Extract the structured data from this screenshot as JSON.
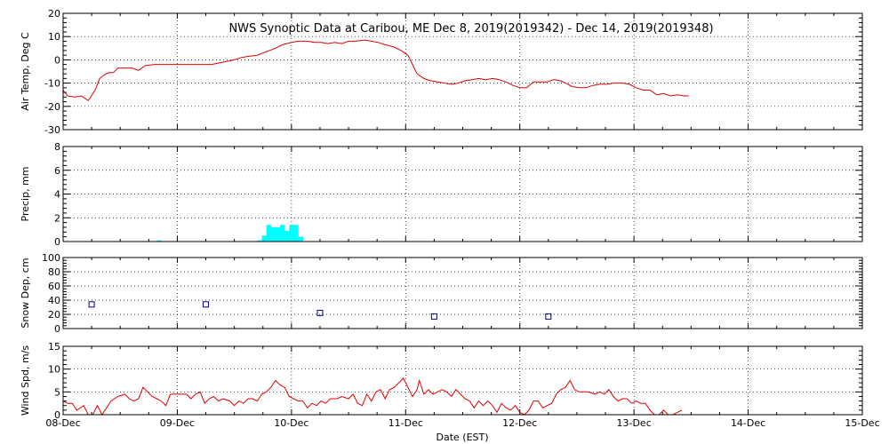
{
  "chart_data": {
    "type": "line",
    "title": "NWS Synoptic Data at Caribou, ME   Dec  8, 2019(2019342) - Dec 14, 2019(2019348)",
    "xlabel": "Date (EST)",
    "x_ticks": [
      "08-Dec",
      "09-Dec",
      "10-Dec",
      "11-Dec",
      "12-Dec",
      "13-Dec",
      "14-Dec",
      "15-Dec"
    ],
    "x_range_days": [
      0,
      7
    ],
    "grid": true,
    "panels": [
      {
        "id": "air-temp",
        "ylabel": "Air Temp, Deg C",
        "ylim": [
          -30,
          20
        ],
        "yticks": [
          "-30",
          "-20",
          "-10",
          "0",
          "10",
          "20"
        ],
        "series": [
          {
            "type": "line",
            "color": "#e00000",
            "points": [
              [
                0.0,
                -13
              ],
              [
                0.04,
                -15.5
              ],
              [
                0.1,
                -16
              ],
              [
                0.16,
                -15.5
              ],
              [
                0.22,
                -17.5
              ],
              [
                0.28,
                -13
              ],
              [
                0.32,
                -8
              ],
              [
                0.36,
                -6.5
              ],
              [
                0.4,
                -5.5
              ],
              [
                0.44,
                -5.5
              ],
              [
                0.48,
                -3.5
              ],
              [
                0.54,
                -3.5
              ],
              [
                0.6,
                -3.5
              ],
              [
                0.66,
                -4.5
              ],
              [
                0.72,
                -2.5
              ],
              [
                0.8,
                -2
              ],
              [
                0.9,
                -2
              ],
              [
                1.0,
                -2
              ],
              [
                1.1,
                -2
              ],
              [
                1.2,
                -2
              ],
              [
                1.3,
                -2
              ],
              [
                1.4,
                -1
              ],
              [
                1.5,
                0
              ],
              [
                1.56,
                1
              ],
              [
                1.62,
                1.5
              ],
              [
                1.7,
                2
              ],
              [
                1.78,
                3.5
              ],
              [
                1.86,
                5
              ],
              [
                1.92,
                6.5
              ],
              [
                2.0,
                7.5
              ],
              [
                2.06,
                8
              ],
              [
                2.14,
                8
              ],
              [
                2.2,
                7.5
              ],
              [
                2.26,
                7.5
              ],
              [
                2.32,
                7
              ],
              [
                2.38,
                7.5
              ],
              [
                2.44,
                7
              ],
              [
                2.5,
                8
              ],
              [
                2.56,
                8
              ],
              [
                2.64,
                8.5
              ],
              [
                2.7,
                8
              ],
              [
                2.76,
                7.5
              ],
              [
                2.82,
                6.5
              ],
              [
                2.9,
                5.5
              ],
              [
                2.96,
                4
              ],
              [
                3.02,
                2
              ],
              [
                3.06,
                -2
              ],
              [
                3.1,
                -6
              ],
              [
                3.16,
                -8
              ],
              [
                3.22,
                -9
              ],
              [
                3.28,
                -9.5
              ],
              [
                3.34,
                -10
              ],
              [
                3.4,
                -10.5
              ],
              [
                3.46,
                -10
              ],
              [
                3.52,
                -9
              ],
              [
                3.58,
                -8.5
              ],
              [
                3.64,
                -8
              ],
              [
                3.7,
                -8.5
              ],
              [
                3.76,
                -8
              ],
              [
                3.82,
                -8.5
              ],
              [
                3.88,
                -9.5
              ],
              [
                3.94,
                -11
              ],
              [
                4.0,
                -12
              ],
              [
                4.06,
                -12
              ],
              [
                4.12,
                -9.5
              ],
              [
                4.18,
                -9.5
              ],
              [
                4.24,
                -9.5
              ],
              [
                4.3,
                -8.5
              ],
              [
                4.36,
                -9
              ],
              [
                4.4,
                -10
              ],
              [
                4.46,
                -11.5
              ],
              [
                4.52,
                -12
              ],
              [
                4.58,
                -12
              ],
              [
                4.64,
                -11
              ],
              [
                4.7,
                -10.5
              ],
              [
                4.76,
                -10.5
              ],
              [
                4.82,
                -10
              ],
              [
                4.9,
                -10
              ],
              [
                4.96,
                -10.5
              ],
              [
                5.02,
                -12
              ],
              [
                5.08,
                -13
              ],
              [
                5.14,
                -13
              ],
              [
                5.2,
                -15
              ],
              [
                5.26,
                -14.5
              ],
              [
                5.32,
                -15.5
              ],
              [
                5.38,
                -15
              ],
              [
                5.44,
                -15.5
              ],
              [
                5.48,
                -15.5
              ]
            ]
          }
        ]
      },
      {
        "id": "precip",
        "ylabel": "Precip, mm",
        "ylim": [
          0,
          8
        ],
        "yticks": [
          "0",
          "2",
          "4",
          "6",
          "8"
        ],
        "series": [
          {
            "type": "step-bar",
            "color": "#00ffff",
            "bars": [
              [
                0.82,
                0.1
              ],
              [
                1.7,
                0.1
              ],
              [
                1.74,
                0.5
              ],
              [
                1.78,
                1.4
              ],
              [
                1.82,
                1.2
              ],
              [
                1.86,
                1.2
              ],
              [
                1.9,
                1.4
              ],
              [
                1.94,
                0.9
              ],
              [
                1.98,
                1.4
              ],
              [
                2.02,
                1.4
              ],
              [
                2.06,
                0.4
              ]
            ],
            "bar_width_days": 0.042
          }
        ]
      },
      {
        "id": "snow-depth",
        "ylabel": "Snow Dep, cm",
        "ylim": [
          0,
          100
        ],
        "yticks": [
          "0",
          "20",
          "40",
          "60",
          "80",
          "100"
        ],
        "series": [
          {
            "type": "scatter",
            "marker": "square-open",
            "color": "#000090",
            "points": [
              [
                0.25,
                34
              ],
              [
                1.25,
                34
              ],
              [
                2.25,
                22
              ],
              [
                3.25,
                17
              ],
              [
                4.25,
                17
              ]
            ]
          }
        ]
      },
      {
        "id": "wind-speed",
        "ylabel": "Wind Spd, m/s",
        "ylim": [
          0,
          15
        ],
        "yticks": [
          "0",
          "5",
          "10",
          "15"
        ],
        "series": [
          {
            "type": "line",
            "color": "#e00000",
            "points": [
              [
                0.0,
                3
              ],
              [
                0.04,
                2.5
              ],
              [
                0.08,
                2.5
              ],
              [
                0.12,
                1
              ],
              [
                0.18,
                2
              ],
              [
                0.22,
                0
              ],
              [
                0.26,
                0
              ],
              [
                0.3,
                2
              ],
              [
                0.34,
                0
              ],
              [
                0.38,
                1.5
              ],
              [
                0.42,
                3
              ],
              [
                0.48,
                4
              ],
              [
                0.54,
                4.5
              ],
              [
                0.58,
                3.5
              ],
              [
                0.62,
                3
              ],
              [
                0.66,
                3.5
              ],
              [
                0.7,
                6
              ],
              [
                0.74,
                5
              ],
              [
                0.78,
                4
              ],
              [
                0.82,
                3.5
              ],
              [
                0.86,
                3
              ],
              [
                0.9,
                2
              ],
              [
                0.94,
                4.5
              ],
              [
                0.98,
                4.5
              ],
              [
                1.04,
                4.5
              ],
              [
                1.08,
                4.5
              ],
              [
                1.12,
                3.5
              ],
              [
                1.16,
                4.5
              ],
              [
                1.2,
                5
              ],
              [
                1.24,
                2.5
              ],
              [
                1.28,
                3.5
              ],
              [
                1.32,
                4
              ],
              [
                1.36,
                3
              ],
              [
                1.4,
                3.5
              ],
              [
                1.46,
                3
              ],
              [
                1.5,
                2
              ],
              [
                1.54,
                3
              ],
              [
                1.58,
                2.5
              ],
              [
                1.62,
                3.5
              ],
              [
                1.66,
                3.5
              ],
              [
                1.7,
                3
              ],
              [
                1.74,
                4.5
              ],
              [
                1.78,
                5
              ],
              [
                1.82,
                6
              ],
              [
                1.86,
                7.5
              ],
              [
                1.9,
                6.5
              ],
              [
                1.94,
                6
              ],
              [
                1.98,
                4
              ],
              [
                2.02,
                3.5
              ],
              [
                2.06,
                3
              ],
              [
                2.1,
                3
              ],
              [
                2.14,
                1.5
              ],
              [
                2.18,
                2.5
              ],
              [
                2.22,
                2
              ],
              [
                2.26,
                3
              ],
              [
                2.3,
                2.5
              ],
              [
                2.34,
                3.5
              ],
              [
                2.4,
                3.5
              ],
              [
                2.44,
                4
              ],
              [
                2.5,
                3.5
              ],
              [
                2.54,
                4.5
              ],
              [
                2.58,
                2.5
              ],
              [
                2.62,
                2
              ],
              [
                2.66,
                4.5
              ],
              [
                2.7,
                3
              ],
              [
                2.74,
                5
              ],
              [
                2.78,
                5.5
              ],
              [
                2.82,
                3.5
              ],
              [
                2.86,
                5.5
              ],
              [
                2.9,
                6
              ],
              [
                2.94,
                7
              ],
              [
                2.98,
                8
              ],
              [
                3.02,
                6
              ],
              [
                3.06,
                4
              ],
              [
                3.1,
                5.5
              ],
              [
                3.12,
                7.5
              ],
              [
                3.16,
                4.5
              ],
              [
                3.2,
                5.5
              ],
              [
                3.24,
                4.5
              ],
              [
                3.28,
                5
              ],
              [
                3.32,
                5.5
              ],
              [
                3.36,
                5
              ],
              [
                3.4,
                4
              ],
              [
                3.44,
                5.5
              ],
              [
                3.48,
                4.5
              ],
              [
                3.52,
                3.5
              ],
              [
                3.56,
                3
              ],
              [
                3.6,
                1.5
              ],
              [
                3.64,
                3
              ],
              [
                3.68,
                2
              ],
              [
                3.72,
                3
              ],
              [
                3.76,
                2
              ],
              [
                3.8,
                0.5
              ],
              [
                3.84,
                2.5
              ],
              [
                3.88,
                1.5
              ],
              [
                3.92,
                1
              ],
              [
                3.96,
                2
              ],
              [
                4.0,
                0.5
              ],
              [
                4.04,
                0
              ],
              [
                4.08,
                1
              ],
              [
                4.12,
                3
              ],
              [
                4.16,
                3
              ],
              [
                4.2,
                1.5
              ],
              [
                4.24,
                2
              ],
              [
                4.28,
                2.5
              ],
              [
                4.32,
                4.5
              ],
              [
                4.36,
                5.5
              ],
              [
                4.4,
                6
              ],
              [
                4.44,
                7.5
              ],
              [
                4.48,
                5.5
              ],
              [
                4.52,
                5
              ],
              [
                4.56,
                5
              ],
              [
                4.6,
                5
              ],
              [
                4.66,
                4.5
              ],
              [
                4.7,
                5
              ],
              [
                4.74,
                4.5
              ],
              [
                4.78,
                5.5
              ],
              [
                4.82,
                4
              ],
              [
                4.86,
                3
              ],
              [
                4.9,
                3.5
              ],
              [
                4.94,
                3.5
              ],
              [
                4.98,
                2.5
              ],
              [
                5.02,
                3
              ],
              [
                5.06,
                2.5
              ],
              [
                5.1,
                2.5
              ],
              [
                5.14,
                1
              ],
              [
                5.18,
                0
              ],
              [
                5.22,
                0
              ],
              [
                5.26,
                1
              ],
              [
                5.3,
                0
              ],
              [
                5.34,
                0
              ],
              [
                5.38,
                0.5
              ],
              [
                5.42,
                1
              ]
            ]
          }
        ]
      }
    ]
  }
}
